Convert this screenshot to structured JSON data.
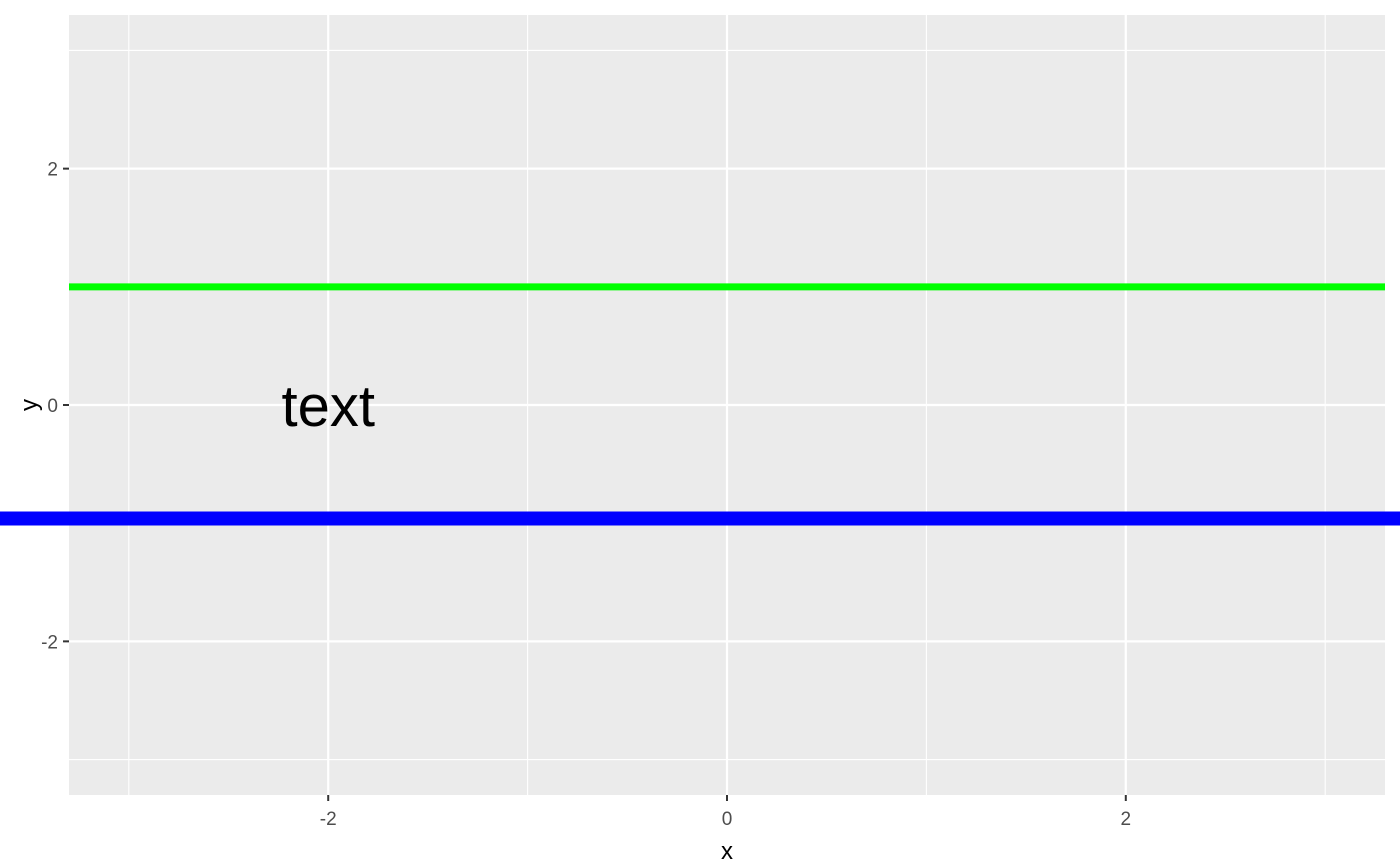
{
  "chart_data": {
    "type": "line",
    "title": "",
    "xlabel": "x",
    "ylabel": "y",
    "xlim": [
      -3.3,
      3.3
    ],
    "ylim": [
      -3.3,
      3.3
    ],
    "x_ticks": [
      {
        "value": -2,
        "label": "-2"
      },
      {
        "value": 0,
        "label": "0"
      },
      {
        "value": 2,
        "label": "2"
      }
    ],
    "y_ticks": [
      {
        "value": -2,
        "label": "-2"
      },
      {
        "value": 0,
        "label": "0"
      },
      {
        "value": 2,
        "label": "2"
      }
    ],
    "x_minor": [
      -3,
      -1,
      1,
      3
    ],
    "y_minor": [
      -3,
      -1,
      1,
      3
    ],
    "grid": true,
    "hlines": [
      {
        "y": 1.0,
        "color": "#00ff00",
        "clipped": true
      },
      {
        "y": -0.96,
        "color": "#0000ff",
        "clipped": false
      }
    ],
    "annotations": [
      {
        "text": "text",
        "x": -2.0,
        "y": 0.0
      }
    ],
    "panel_color": "#ebebeb",
    "grid_color": "#ffffff"
  }
}
